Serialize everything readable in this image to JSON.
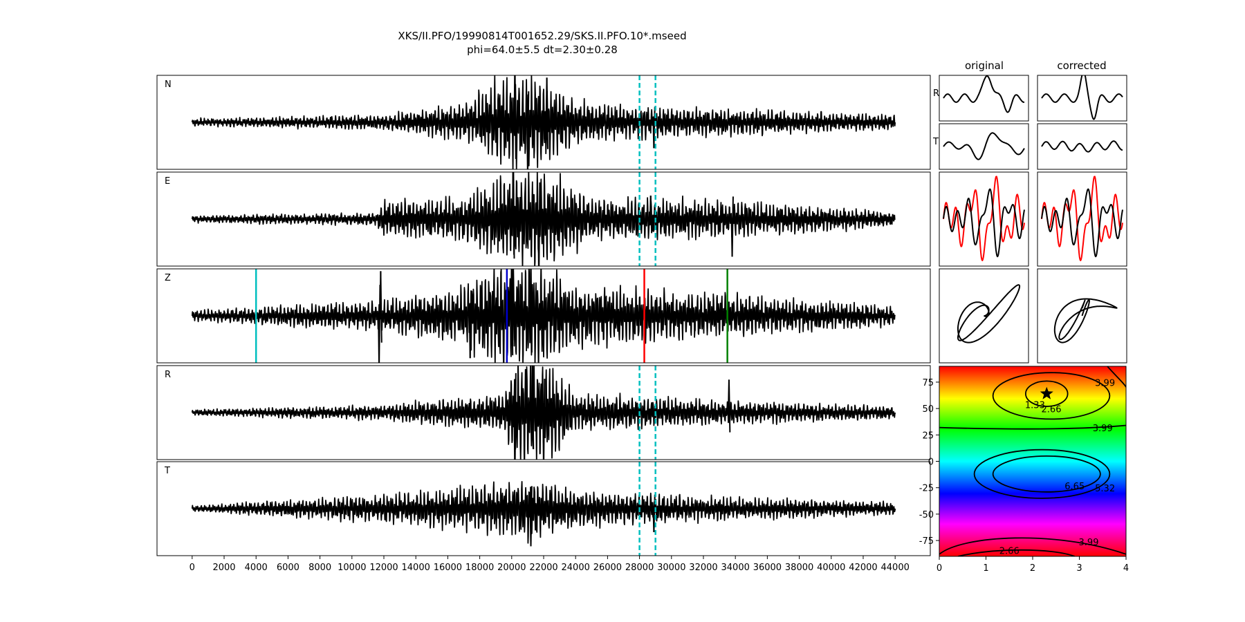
{
  "chart_data": {
    "type": "composite",
    "title_line1": "XKS/II.PFO/19990814T001652.29/SKS.II.PFO.10*.mseed",
    "title_line2": "phi=64.0±5.5 dt=2.30±0.28",
    "waveforms": {
      "type": "line",
      "xlim": [
        -2200,
        46200
      ],
      "xticks": [
        0,
        2000,
        4000,
        6000,
        8000,
        10000,
        12000,
        14000,
        16000,
        18000,
        20000,
        22000,
        24000,
        26000,
        28000,
        30000,
        32000,
        34000,
        36000,
        38000,
        40000,
        42000,
        44000
      ],
      "x_range": [
        0,
        44000
      ],
      "traces": [
        {
          "label": "N",
          "seed": 11,
          "segments": [
            [
              0,
              0.06
            ],
            [
              12000,
              0.12
            ],
            [
              17000,
              0.3
            ],
            [
              19500,
              0.75
            ],
            [
              22000,
              0.7
            ],
            [
              24000,
              0.35
            ],
            [
              28000,
              0.25
            ],
            [
              34000,
              0.22
            ],
            [
              44000,
              0.12
            ]
          ],
          "spikes": [
            [
              20200,
              1.3
            ],
            [
              21000,
              -1.1
            ],
            [
              22200,
              0.95
            ],
            [
              28900,
              -0.55
            ]
          ]
        },
        {
          "label": "E",
          "seed": 23,
          "segments": [
            [
              0,
              0.06
            ],
            [
              11500,
              0.1
            ],
            [
              12000,
              0.3
            ],
            [
              17000,
              0.35
            ],
            [
              20000,
              0.8
            ],
            [
              22500,
              0.75
            ],
            [
              25000,
              0.35
            ],
            [
              34000,
              0.3
            ],
            [
              44000,
              0.12
            ]
          ],
          "spikes": [
            [
              20100,
              1.4
            ],
            [
              21700,
              -1.3
            ],
            [
              33800,
              -0.8
            ],
            [
              28700,
              0.5
            ]
          ]
        },
        {
          "label": "Z",
          "seed": 37,
          "segments": [
            [
              0,
              0.08
            ],
            [
              11500,
              0.25
            ],
            [
              17000,
              0.45
            ],
            [
              18500,
              0.8
            ],
            [
              21000,
              0.9
            ],
            [
              24000,
              0.5
            ],
            [
              34000,
              0.35
            ],
            [
              44000,
              0.15
            ]
          ],
          "spikes": [
            [
              11800,
              0.95
            ],
            [
              11700,
              -1.1
            ],
            [
              17400,
              -0.9
            ],
            [
              20000,
              1.4
            ],
            [
              21200,
              1.3
            ]
          ]
        },
        {
          "label": "R",
          "seed": 53,
          "segments": [
            [
              0,
              0.05
            ],
            [
              11500,
              0.12
            ],
            [
              19500,
              0.3
            ],
            [
              20300,
              0.9
            ],
            [
              22200,
              0.85
            ],
            [
              24000,
              0.3
            ],
            [
              33000,
              0.2
            ],
            [
              44000,
              0.1
            ]
          ],
          "spikes": [
            [
              20200,
              -1.4
            ],
            [
              21300,
              1.3
            ],
            [
              22000,
              -1.2
            ],
            [
              33600,
              0.7
            ]
          ]
        },
        {
          "label": "T",
          "seed": 71,
          "segments": [
            [
              0,
              0.05
            ],
            [
              11500,
              0.22
            ],
            [
              19000,
              0.4
            ],
            [
              21000,
              0.55
            ],
            [
              23000,
              0.35
            ],
            [
              27000,
              0.25
            ],
            [
              30000,
              0.22
            ],
            [
              44000,
              0.1
            ]
          ],
          "spikes": [
            [
              21200,
              -0.8
            ],
            [
              28900,
              -0.5
            ]
          ]
        }
      ],
      "window_lines": {
        "color": "#00bfbf",
        "style": "dashed",
        "x": [
          28000,
          29000
        ],
        "panels": [
          "N",
          "E",
          "R",
          "T"
        ]
      },
      "phase_markers": [
        {
          "x": 4000,
          "color": "#00bfbf"
        },
        {
          "x": 19700,
          "color": "#0000cc"
        },
        {
          "x": 28300,
          "color": "#ff0000"
        },
        {
          "x": 33500,
          "color": "#008000"
        }
      ]
    },
    "particle_motion": {
      "column_titles": [
        "original",
        "corrected"
      ],
      "row_labels": [
        "R",
        "T"
      ]
    },
    "error_surface": {
      "type": "heatmap",
      "colormap": "hsv",
      "xlim": [
        0,
        4
      ],
      "ylim": [
        -90,
        90
      ],
      "xticks": [
        0,
        1,
        2,
        3,
        4
      ],
      "yticks": [
        75,
        50,
        25,
        0,
        -25,
        -50,
        -75
      ],
      "best_fit": {
        "dt": 2.3,
        "phi": 64.0
      },
      "contour_levels": [
        1.33,
        2.66,
        3.99,
        5.32,
        6.65
      ]
    }
  }
}
